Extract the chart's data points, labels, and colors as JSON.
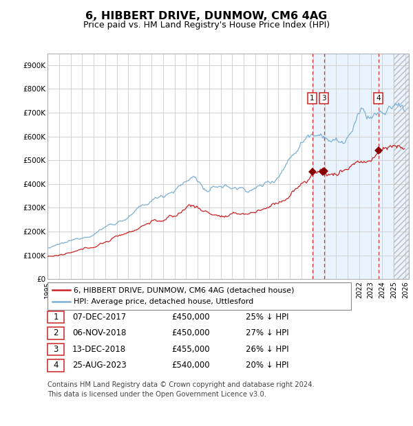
{
  "title": "6, HIBBERT DRIVE, DUNMOW, CM6 4AG",
  "subtitle": "Price paid vs. HM Land Registry's House Price Index (HPI)",
  "background_color": "#ffffff",
  "plot_bg_color": "#ffffff",
  "hpi_line_color": "#7ab0d4",
  "price_line_color": "#cc2222",
  "sale_marker_color": "#880000",
  "vline_color": "#dd3333",
  "shade_color": "#ddeeff",
  "sale_dates_decimal": [
    2017.93,
    2018.84,
    2018.95,
    2023.65
  ],
  "sale_prices": [
    450000,
    450000,
    455000,
    540000
  ],
  "vlines": [
    2017.93,
    2018.95,
    2023.65
  ],
  "hatch_start": 2025.0,
  "xlim_start": 1995.0,
  "xlim_end": 2026.3,
  "ylim_max": 950000,
  "label_boxes": [
    {
      "label": "1",
      "x": 2017.93
    },
    {
      "label": "3",
      "x": 2018.95
    },
    {
      "label": "4",
      "x": 2023.65
    }
  ],
  "legend_entries": [
    {
      "label": "6, HIBBERT DRIVE, DUNMOW, CM6 4AG (detached house)",
      "color": "#cc2222"
    },
    {
      "label": "HPI: Average price, detached house, Uttlesford",
      "color": "#7ab0d4"
    }
  ],
  "table_rows": [
    {
      "num": "1",
      "date": "07-DEC-2017",
      "price": "£450,000",
      "pct": "25% ↓ HPI"
    },
    {
      "num": "2",
      "date": "06-NOV-2018",
      "price": "£450,000",
      "pct": "27% ↓ HPI"
    },
    {
      "num": "3",
      "date": "13-DEC-2018",
      "price": "£455,000",
      "pct": "26% ↓ HPI"
    },
    {
      "num": "4",
      "date": "25-AUG-2023",
      "price": "£540,000",
      "pct": "20% ↓ HPI"
    }
  ],
  "footer": "Contains HM Land Registry data © Crown copyright and database right 2024.\nThis data is licensed under the Open Government Licence v3.0.",
  "yticks": [
    0,
    100000,
    200000,
    300000,
    400000,
    500000,
    600000,
    700000,
    800000,
    900000
  ],
  "ytick_labels": [
    "£0",
    "£100K",
    "£200K",
    "£300K",
    "£400K",
    "£500K",
    "£600K",
    "£700K",
    "£800K",
    "£900K"
  ],
  "xticks": [
    1995,
    1996,
    1997,
    1998,
    1999,
    2000,
    2001,
    2002,
    2003,
    2004,
    2005,
    2006,
    2007,
    2008,
    2009,
    2010,
    2011,
    2012,
    2013,
    2014,
    2015,
    2016,
    2017,
    2018,
    2019,
    2020,
    2021,
    2022,
    2023,
    2024,
    2025,
    2026
  ]
}
